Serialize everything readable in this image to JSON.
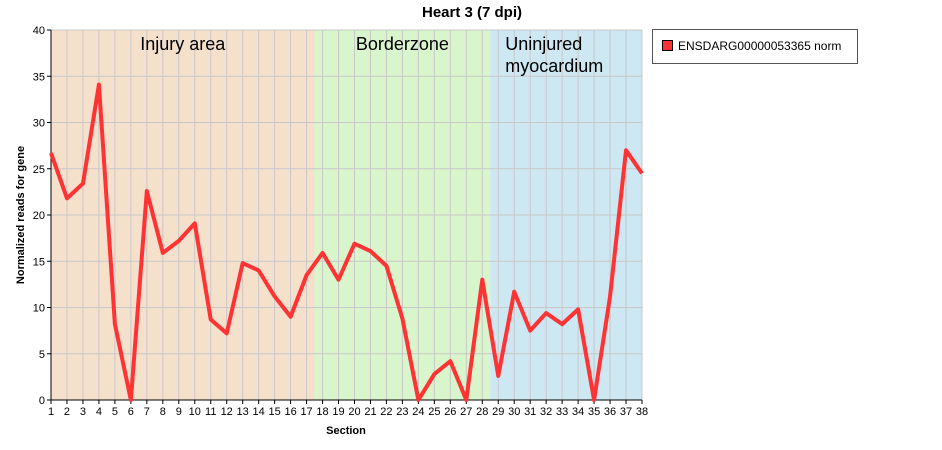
{
  "chart_data": {
    "type": "line",
    "title": "Heart 3 (7 dpi)",
    "xlabel": "Section",
    "ylabel": "Normalized reads for gene",
    "xlim": [
      1,
      38
    ],
    "ylim": [
      0,
      40
    ],
    "yticks": [
      0,
      5,
      10,
      15,
      20,
      25,
      30,
      35,
      40
    ],
    "x": [
      1,
      2,
      3,
      4,
      5,
      6,
      7,
      8,
      9,
      10,
      11,
      12,
      13,
      14,
      15,
      16,
      17,
      18,
      19,
      20,
      21,
      22,
      23,
      24,
      25,
      26,
      27,
      28,
      29,
      30,
      31,
      32,
      33,
      34,
      35,
      36,
      37,
      38
    ],
    "grid": true,
    "legend_position": "right",
    "regions": [
      {
        "label_lines": [
          "Injury area"
        ],
        "from": 1,
        "to": 17.5,
        "color": "#f5e0cc"
      },
      {
        "label_lines": [
          "Borderzone"
        ],
        "from": 17.5,
        "to": 28.5,
        "color": "#d9f5cc"
      },
      {
        "label_lines": [
          "Uninjured",
          "myocardium"
        ],
        "from": 28.5,
        "to": 38,
        "color": "#cde8f2"
      }
    ],
    "series": [
      {
        "name": "ENSDARG00000053365 norm",
        "color": "#ff3333",
        "values": [
          26.7,
          21.8,
          23.4,
          34.1,
          8.2,
          0,
          22.6,
          15.9,
          17.2,
          19.1,
          8.7,
          7.2,
          14.8,
          14.0,
          11.2,
          9.0,
          13.5,
          15.9,
          13.0,
          16.9,
          16.1,
          14.5,
          8.8,
          0,
          2.8,
          4.2,
          0,
          13.0,
          2.6,
          11.7,
          7.5,
          9.4,
          8.2,
          9.8,
          0,
          11.2,
          27.0,
          24.5
        ]
      }
    ]
  }
}
